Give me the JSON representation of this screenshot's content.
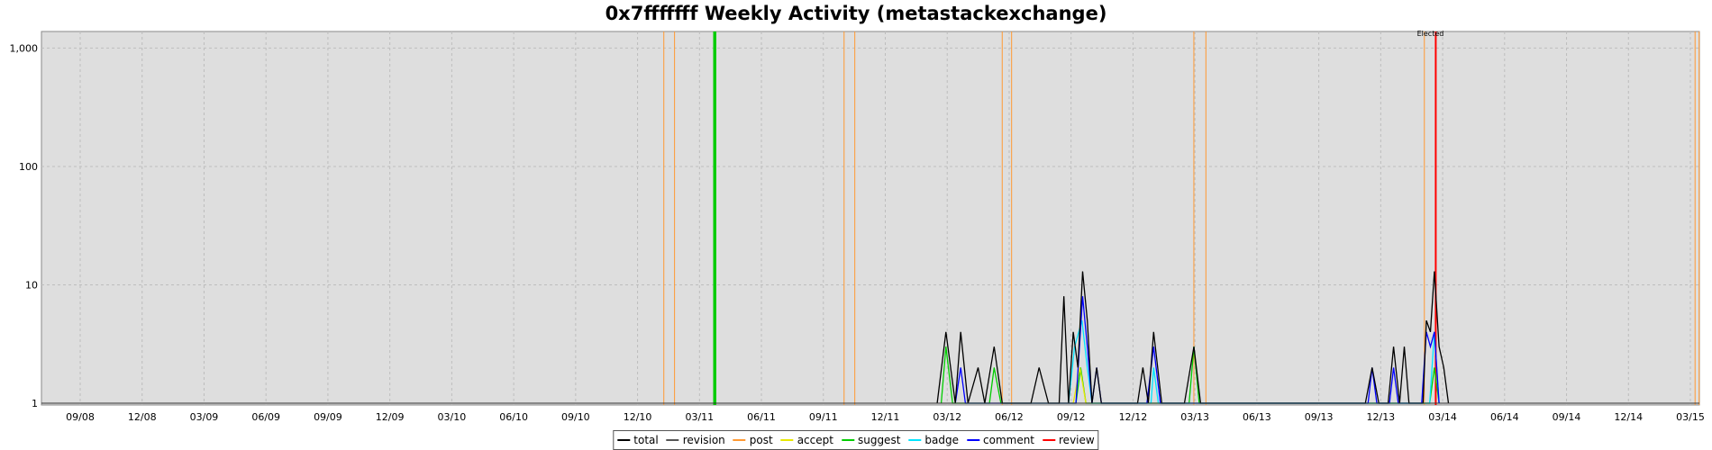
{
  "chart_data": {
    "type": "line",
    "title": "0x7fffffff Weekly Activity (metastackexchange)",
    "y_scale": "log",
    "ylim": [
      1,
      1200
    ],
    "y_ticks": [
      1,
      10,
      100,
      1000
    ],
    "y_tick_labels": [
      "1",
      "10",
      "100",
      "1,000"
    ],
    "x_tick_labels": [
      "09/08",
      "12/08",
      "03/09",
      "06/09",
      "09/09",
      "12/09",
      "03/10",
      "06/10",
      "09/10",
      "12/10",
      "03/11",
      "06/11",
      "09/11",
      "12/11",
      "03/12",
      "06/12",
      "09/12",
      "12/12",
      "03/13",
      "06/13",
      "09/13",
      "12/13",
      "03/14",
      "06/14",
      "09/14",
      "12/14",
      "03/15"
    ],
    "x_start": "2008-08",
    "x_end": "2015-03",
    "grid": true,
    "legend_position": "bottom",
    "series": [
      {
        "name": "total",
        "color": "#000000",
        "points": [
          [
            "2012-02",
            1
          ],
          [
            "2012-02-14",
            4
          ],
          [
            "2012-02-28",
            1
          ],
          [
            "2012-03-07",
            4
          ],
          [
            "2012-03-18",
            1
          ],
          [
            "2012-04-02",
            2
          ],
          [
            "2012-04-12",
            1
          ],
          [
            "2012-04-26",
            3
          ],
          [
            "2012-05-08",
            1
          ],
          [
            "2012-06-20",
            1
          ],
          [
            "2012-07-02",
            2
          ],
          [
            "2012-07-16",
            1
          ],
          [
            "2012-08-01",
            1
          ],
          [
            "2012-08-08",
            8
          ],
          [
            "2012-08-15",
            1
          ],
          [
            "2012-08-22",
            4
          ],
          [
            "2012-08-29",
            2
          ],
          [
            "2012-09-05",
            13
          ],
          [
            "2012-09-12",
            5
          ],
          [
            "2012-09-19",
            1
          ],
          [
            "2012-09-26",
            2
          ],
          [
            "2012-10-03",
            1
          ],
          [
            "2012-11-26",
            1
          ],
          [
            "2012-12-04",
            2
          ],
          [
            "2012-12-12",
            1
          ],
          [
            "2012-12-20",
            4
          ],
          [
            "2013-01-01",
            1
          ],
          [
            "2013-02-04",
            1
          ],
          [
            "2013-02-18",
            3
          ],
          [
            "2013-02-28",
            1
          ],
          [
            "2013-11-01",
            1
          ],
          [
            "2013-11-11",
            2
          ],
          [
            "2013-11-21",
            1
          ],
          [
            "2013-12-05",
            1
          ],
          [
            "2013-12-13",
            3
          ],
          [
            "2013-12-22",
            1
          ],
          [
            "2013-12-29",
            3
          ],
          [
            "2014-01-05",
            1
          ],
          [
            "2014-01-26",
            1
          ],
          [
            "2014-01-31",
            5
          ],
          [
            "2014-02-06",
            4
          ],
          [
            "2014-02-12",
            13
          ],
          [
            "2014-02-19",
            3
          ],
          [
            "2014-02-26",
            2
          ],
          [
            "2014-03-05",
            1
          ]
        ]
      },
      {
        "name": "revision",
        "color": "#555555",
        "points": []
      },
      {
        "name": "post",
        "color": "#ff9933",
        "points": []
      },
      {
        "name": "accept",
        "color": "#e8e800",
        "points": [
          [
            "2012-08-22",
            1
          ],
          [
            "2012-09-01",
            2
          ],
          [
            "2012-09-10",
            1
          ]
        ]
      },
      {
        "name": "suggest",
        "color": "#00cc00",
        "points": [
          [
            "2012-02-07",
            1
          ],
          [
            "2012-02-14",
            3
          ],
          [
            "2012-02-24",
            1
          ],
          [
            "2012-04-19",
            1
          ],
          [
            "2012-04-26",
            2
          ],
          [
            "2012-05-06",
            1
          ],
          [
            "2012-08-26",
            1
          ],
          [
            "2012-09-02",
            2
          ],
          [
            "2012-09-10",
            1
          ],
          [
            "2013-02-11",
            1
          ],
          [
            "2013-02-18",
            3
          ],
          [
            "2013-02-26",
            1
          ],
          [
            "2014-02-05",
            1
          ],
          [
            "2014-02-12",
            2
          ],
          [
            "2014-02-19",
            1
          ]
        ]
      },
      {
        "name": "badge",
        "color": "#00e5ff",
        "points": [
          [
            "2012-08-15",
            1
          ],
          [
            "2012-08-24",
            3
          ],
          [
            "2012-09-04",
            5
          ],
          [
            "2012-09-12",
            2
          ],
          [
            "2012-09-19",
            1
          ],
          [
            "2012-12-16",
            1
          ],
          [
            "2012-12-20",
            2
          ],
          [
            "2012-12-27",
            1
          ],
          [
            "2014-02-05",
            1
          ],
          [
            "2014-02-12",
            4
          ],
          [
            "2014-02-19",
            1
          ]
        ]
      },
      {
        "name": "comment",
        "color": "#0000ff",
        "points": [
          [
            "2012-02-28",
            1
          ],
          [
            "2012-03-07",
            2
          ],
          [
            "2012-03-14",
            1
          ],
          [
            "2012-08-26",
            1
          ],
          [
            "2012-09-05",
            8
          ],
          [
            "2012-09-12",
            3
          ],
          [
            "2012-09-19",
            1
          ],
          [
            "2012-09-26",
            2
          ],
          [
            "2012-10-03",
            1
          ],
          [
            "2012-12-10",
            1
          ],
          [
            "2012-12-20",
            3
          ],
          [
            "2012-12-30",
            1
          ],
          [
            "2013-11-05",
            1
          ],
          [
            "2013-11-11",
            2
          ],
          [
            "2013-11-18",
            1
          ],
          [
            "2013-12-07",
            1
          ],
          [
            "2013-12-13",
            2
          ],
          [
            "2013-12-20",
            1
          ],
          [
            "2014-01-24",
            1
          ],
          [
            "2014-01-31",
            4
          ],
          [
            "2014-02-06",
            3
          ],
          [
            "2014-02-12",
            4
          ],
          [
            "2014-02-19",
            1
          ]
        ]
      },
      {
        "name": "review",
        "color": "#ff0000",
        "points": []
      }
    ],
    "event_lines": [
      {
        "type": "post",
        "color": "#ff9933",
        "dates": [
          "2010-12-20",
          "2011-01-05",
          "2011-09-15",
          "2011-10-01",
          "2012-05-08",
          "2012-05-22",
          "2013-02-18",
          "2013-03-08",
          "2014-01-28",
          "2015-03-08",
          "2015-03-14"
        ]
      },
      {
        "type": "suggest",
        "color": "#00cc00",
        "dates": [
          "2011-03-05",
          "2011-03-06",
          "2011-03-07"
        ]
      },
      {
        "type": "review",
        "color": "#ff0000",
        "dates": [
          "2014-02-14"
        ]
      }
    ],
    "annotations": [
      {
        "text": "Elected",
        "date": "2014-02-06"
      }
    ]
  }
}
